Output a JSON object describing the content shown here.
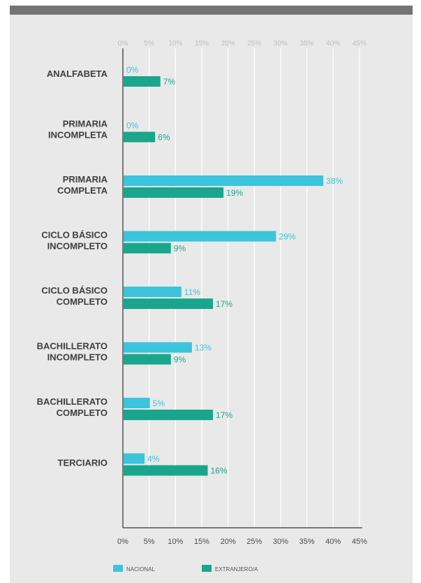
{
  "colors": {
    "nacional": "#3bc4dc",
    "extranjero": "#1aa68c",
    "top_bar": "#747474",
    "panel": "#e9e9e9",
    "grid": "#ffffff",
    "axis": "#555555",
    "top_tick_text": "#bdbdbd",
    "bottom_tick_text": "#4a4a4a",
    "category_text": "#3e3e3e"
  },
  "chart_data": {
    "type": "bar",
    "orientation": "horizontal",
    "categories": [
      [
        "ANALFABETA"
      ],
      [
        "PRIMARIA",
        "INCOMPLETA"
      ],
      [
        "PRIMARIA",
        "COMPLETA"
      ],
      [
        "CICLO BÁSICO",
        "INCOMPLETO"
      ],
      [
        "CICLO BÁSICO",
        "COMPLETO"
      ],
      [
        "BACHILLERATO",
        "INCOMPLETO"
      ],
      [
        "BACHILLERATO",
        "COMPLETO"
      ],
      [
        "TERCIARIO"
      ]
    ],
    "series": [
      {
        "name": "NACIONAL",
        "values": [
          0,
          0,
          38,
          29,
          11,
          13,
          5,
          4
        ],
        "labels": [
          "0%",
          "0%",
          "38%",
          "29%",
          "11%",
          "13%",
          "5%",
          "4%"
        ]
      },
      {
        "name": "EXTRANJERO/A",
        "values": [
          7,
          6,
          19,
          9,
          17,
          9,
          17,
          16
        ],
        "labels": [
          "7%",
          "6%",
          "19%",
          "9%",
          "17%",
          "9%",
          "17%",
          "16%"
        ]
      }
    ],
    "xlim": [
      0,
      45
    ],
    "xticks": [
      0,
      5,
      10,
      15,
      20,
      25,
      30,
      35,
      40,
      45
    ],
    "xtick_labels": [
      "0%",
      "5%",
      "10%",
      "15%",
      "20%",
      "25%",
      "30%",
      "35%",
      "40%",
      "45%"
    ],
    "grid": true,
    "tick_labels_position": "top and bottom",
    "legend_position": "bottom-left"
  }
}
